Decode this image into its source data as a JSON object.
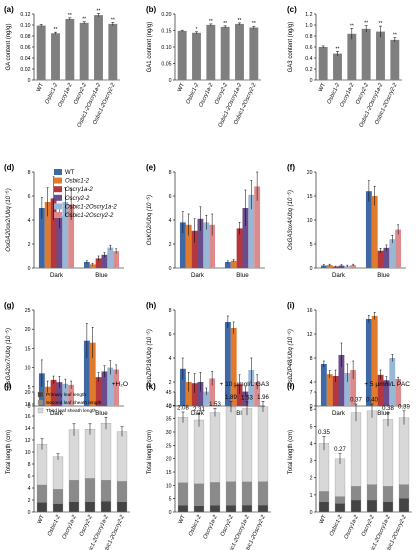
{
  "strains": [
    "WT",
    "Osbic1-2",
    "Oscry1a-2",
    "Oscry2-2",
    "Osbic1-2Oscry1a-2",
    "Osbic1-2Oscry2-2"
  ],
  "colors": {
    "gray_bar": "#7f7f7f",
    "WT": "#3f68a6",
    "Osbic1-2": "#e07b2e",
    "Oscry1a-2": "#b3373c",
    "Oscry2-2": "#6a4b8c",
    "Osbic1-2Oscry1a-2": "#98b6d6",
    "Osbic1-2Oscry2-2": "#dc8a8c",
    "primary": "#444444",
    "second": "#8a8a8a",
    "third": "#d8d8d8"
  },
  "chart_data": [
    {
      "id": "a",
      "panel_label": "(a)",
      "type": "bar",
      "ylabel": "GA content (ng/g)",
      "ylim": [
        0,
        0.12
      ],
      "yticks": [
        "0",
        "0.02",
        "0.04",
        "0.06",
        "0.08",
        "0.10",
        "0.12"
      ],
      "values": [
        0.099,
        0.085,
        0.111,
        0.104,
        0.118,
        0.102
      ],
      "errors": [
        0.002,
        0.002,
        0.002,
        0.002,
        0.003,
        0.003
      ],
      "sig": [
        "",
        "**",
        "**",
        "**",
        "**",
        "**"
      ]
    },
    {
      "id": "b",
      "panel_label": "(b)",
      "type": "bar",
      "ylabel": "GA1 content (ng/g)",
      "ylim": [
        0,
        0.2
      ],
      "yticks": [
        "0",
        "0.05",
        "0.10",
        "0.15",
        "0.20"
      ],
      "values": [
        0.149,
        0.143,
        0.167,
        0.161,
        0.17,
        0.159
      ],
      "errors": [
        0.002,
        0.003,
        0.003,
        0.003,
        0.003,
        0.004
      ],
      "sig": [
        "",
        "*",
        "**",
        "**",
        "**",
        "**"
      ]
    },
    {
      "id": "c",
      "panel_label": "(c)",
      "type": "bar",
      "ylabel": "GA3 content (ng/g)",
      "ylim": [
        0,
        1.2
      ],
      "yticks": [
        "0",
        "0.2",
        "0.4",
        "0.6",
        "0.8",
        "1.0",
        "1.2"
      ],
      "values": [
        0.6,
        0.48,
        0.84,
        0.93,
        0.88,
        0.73
      ],
      "errors": [
        0.02,
        0.04,
        0.1,
        0.06,
        0.1,
        0.04
      ],
      "sig": [
        "",
        "**",
        "**",
        "**",
        "**",
        "**"
      ]
    },
    {
      "id": "d",
      "panel_label": "(d)",
      "type": "bar",
      "ylabel": "OsGA20ox2/Ubq (10⁻⁵)",
      "ylim": [
        0,
        8
      ],
      "yticks": [
        "0",
        "2",
        "4",
        "6",
        "8"
      ],
      "categories": [
        "Dark",
        "Blue"
      ],
      "series": [
        {
          "name": "WT",
          "values": [
            5.0,
            0.5
          ],
          "errors": [
            0.9,
            0.1
          ]
        },
        {
          "name": "Osbic1-2",
          "values": [
            5.5,
            0.3
          ],
          "errors": [
            1.2,
            0.1
          ]
        },
        {
          "name": "Oscry1a-2",
          "values": [
            5.8,
            0.8
          ],
          "errors": [
            1.8,
            0.2
          ]
        },
        {
          "name": "Oscry2-2",
          "values": [
            4.3,
            1.1
          ],
          "errors": [
            1.0,
            0.2
          ]
        },
        {
          "name": "Osbic1-2Oscry1a-2",
          "values": [
            5.5,
            1.7
          ],
          "errors": [
            1.2,
            0.2
          ]
        },
        {
          "name": "Osbic1-2Oscry2-2",
          "values": [
            5.3,
            1.4
          ],
          "errors": [
            1.3,
            0.2
          ]
        }
      ]
    },
    {
      "id": "e",
      "panel_label": "(e)",
      "type": "bar",
      "ylabel": "OsKO2/Ubq (10⁻⁵)",
      "ylim": [
        0,
        8
      ],
      "yticks": [
        "0",
        "2",
        "4",
        "6",
        "8"
      ],
      "categories": [
        "Dark",
        "Blue"
      ],
      "series": [
        {
          "name": "WT",
          "values": [
            3.8,
            0.5
          ],
          "errors": [
            0.9,
            0.1
          ]
        },
        {
          "name": "Osbic1-2",
          "values": [
            3.6,
            0.6
          ],
          "errors": [
            0.9,
            0.1
          ]
        },
        {
          "name": "Oscry1a-2",
          "values": [
            3.1,
            3.3
          ],
          "errors": [
            1.0,
            0.5
          ]
        },
        {
          "name": "Oscry2-2",
          "values": [
            4.1,
            5.0
          ],
          "errors": [
            1.0,
            1.5
          ]
        },
        {
          "name": "Osbic1-2Oscry1a-2",
          "values": [
            3.8,
            6.1
          ],
          "errors": [
            0.6,
            1.2
          ]
        },
        {
          "name": "Osbic1-2Oscry2-2",
          "values": [
            3.6,
            6.8
          ],
          "errors": [
            0.9,
            1.2
          ]
        }
      ]
    },
    {
      "id": "f",
      "panel_label": "(f)",
      "type": "bar",
      "ylabel": "OsGA3ox4/Ubq (10⁻⁵)",
      "ylim": [
        0,
        20
      ],
      "yticks": [
        "0",
        "5",
        "10",
        "15",
        "20"
      ],
      "categories": [
        "Dark",
        "Blue"
      ],
      "series": [
        {
          "name": "WT",
          "values": [
            0.5,
            16.0
          ],
          "errors": [
            0.2,
            2.2
          ]
        },
        {
          "name": "Osbic1-2",
          "values": [
            0.6,
            15.0
          ],
          "errors": [
            0.2,
            2.0
          ]
        },
        {
          "name": "Oscry1a-2",
          "values": [
            0.3,
            3.6
          ],
          "errors": [
            0.1,
            0.5
          ]
        },
        {
          "name": "Oscry2-2",
          "values": [
            0.5,
            4.2
          ],
          "errors": [
            0.2,
            0.6
          ]
        },
        {
          "name": "Osbic1-2Oscry1a-2",
          "values": [
            0.4,
            6.0
          ],
          "errors": [
            0.2,
            0.8
          ]
        },
        {
          "name": "Osbic1-2Oscry2-2",
          "values": [
            0.6,
            8.0
          ],
          "errors": [
            0.2,
            1.0
          ]
        }
      ]
    },
    {
      "id": "g",
      "panel_label": "(g)",
      "type": "bar",
      "ylabel": "OsGA2ox7/Ubq (10⁻⁵)",
      "ylim": [
        0,
        25
      ],
      "yticks": [
        "0",
        "5",
        "10",
        "15",
        "20",
        "25"
      ],
      "categories": [
        "Dark",
        "Blue"
      ],
      "series": [
        {
          "name": "WT",
          "values": [
            8.5,
            17.0
          ],
          "errors": [
            3.5,
            4.5
          ]
        },
        {
          "name": "Osbic1-2",
          "values": [
            5.0,
            16.5
          ],
          "errors": [
            1.5,
            4.0
          ]
        },
        {
          "name": "Oscry1a-2",
          "values": [
            6.8,
            7.5
          ],
          "errors": [
            1.0,
            1.2
          ]
        },
        {
          "name": "Oscry2-2",
          "values": [
            6.2,
            9.0
          ],
          "errors": [
            1.5,
            1.5
          ]
        },
        {
          "name": "Osbic1-2Oscry1a-2",
          "values": [
            5.8,
            10.0
          ],
          "errors": [
            1.2,
            1.8
          ]
        },
        {
          "name": "Osbic1-2Oscry2-2",
          "values": [
            5.5,
            9.5
          ],
          "errors": [
            1.0,
            1.2
          ]
        }
      ]
    },
    {
      "id": "h",
      "panel_label": "(h)",
      "type": "bar",
      "ylabel": "OsbZIP18/Ubq (10⁻⁵)",
      "ylim": [
        0,
        8
      ],
      "yticks": [
        "0",
        "2",
        "4",
        "6",
        "8"
      ],
      "categories": [
        "Dark",
        "Blue"
      ],
      "series": [
        {
          "name": "WT",
          "values": [
            3.1,
            7.0
          ],
          "errors": [
            0.9,
            0.5
          ]
        },
        {
          "name": "Osbic1-2",
          "values": [
            2.0,
            6.5
          ],
          "errors": [
            0.8,
            0.5
          ]
        },
        {
          "name": "Oscry1a-2",
          "values": [
            1.9,
            1.8
          ],
          "errors": [
            0.8,
            0.8
          ]
        },
        {
          "name": "Oscry2-2",
          "values": [
            2.0,
            1.2
          ],
          "errors": [
            0.8,
            0.4
          ]
        },
        {
          "name": "Osbic1-2Oscry1a-2",
          "values": [
            1.2,
            3.0
          ],
          "errors": [
            0.3,
            1.0
          ]
        },
        {
          "name": "Osbic1-2Oscry2-2",
          "values": [
            2.3,
            2.0
          ],
          "errors": [
            0.6,
            0.6
          ]
        }
      ]
    },
    {
      "id": "i",
      "panel_label": "(i)",
      "type": "bar",
      "ylabel": "OsbZIP48/Ubq (10⁻⁶)",
      "ylim": [
        0,
        16
      ],
      "yticks": [
        "0",
        "4",
        "8",
        "12",
        "16"
      ],
      "categories": [
        "Dark",
        "Blue"
      ],
      "series": [
        {
          "name": "WT",
          "values": [
            7.0,
            14.5
          ],
          "errors": [
            0.5,
            0.6
          ]
        },
        {
          "name": "Osbic1-2",
          "values": [
            5.3,
            15.0
          ],
          "errors": [
            0.6,
            0.6
          ]
        },
        {
          "name": "Oscry1a-2",
          "values": [
            5.0,
            5.2
          ],
          "errors": [
            1.0,
            0.8
          ]
        },
        {
          "name": "Oscry2-2",
          "values": [
            8.5,
            4.3
          ],
          "errors": [
            2.0,
            0.6
          ]
        },
        {
          "name": "Osbic1-2Oscry1a-2",
          "values": [
            5.5,
            8.0
          ],
          "errors": [
            1.5,
            0.6
          ]
        },
        {
          "name": "Osbic1-2Oscry2-2",
          "values": [
            6.0,
            4.5
          ],
          "errors": [
            1.5,
            0.3
          ]
        }
      ]
    },
    {
      "id": "j",
      "panel_label": "(j)",
      "type": "stacked-bar",
      "treatment": "+H₂O",
      "ylabel": "Total length (cm)",
      "ylim": [
        0,
        20
      ],
      "yticks": [
        "0",
        "2",
        "4",
        "6",
        "8",
        "10",
        "12",
        "14",
        "16",
        "18",
        "20"
      ],
      "legend": [
        "Primary leaf length",
        "Second leaf sheath length",
        "Third leaf sheath length"
      ],
      "stack": [
        {
          "name": "Primary leaf length",
          "values": [
            1.6,
            1.4,
            1.7,
            1.7,
            1.8,
            1.7
          ]
        },
        {
          "name": "Second leaf sheath length",
          "values": [
            2.9,
            2.4,
            3.6,
            3.9,
            3.5,
            3.4
          ]
        },
        {
          "name": "Third leaf sheath length",
          "values": [
            6.8,
            5.4,
            8.4,
            8.2,
            9.5,
            8.3
          ]
        }
      ],
      "totals": [
        11.3,
        9.2,
        13.7,
        13.8,
        14.8,
        13.4
      ],
      "errors": [
        0.9,
        0.5,
        1.0,
        0.9,
        1.0,
        0.8
      ]
    },
    {
      "id": "k",
      "panel_label": "(k)",
      "type": "stacked-bar",
      "treatment": "+ 10 μmol/L GA3",
      "ylabel": "Total length (cm)",
      "ylim": [
        0,
        45
      ],
      "yticks": [
        "0",
        "5",
        "10",
        "15",
        "20",
        "25",
        "30",
        "35",
        "40",
        "45"
      ],
      "ratios": [
        "2.08",
        "2.31",
        "1.53",
        "1.89",
        "1.53",
        "1.96"
      ],
      "stack": [
        {
          "name": "Primary leaf length",
          "values": [
            2.5,
            2.3,
            2.5,
            2.5,
            2.6,
            2.6
          ]
        },
        {
          "name": "Second leaf sheath length",
          "values": [
            8.5,
            8.3,
            8.6,
            8.9,
            8.7,
            8.8
          ]
        },
        {
          "name": "Third leaf sheath length",
          "values": [
            24.5,
            23.9,
            26.2,
            28.0,
            27.5,
            28.1
          ]
        }
      ],
      "totals": [
        35.5,
        34.5,
        37.3,
        39.4,
        38.8,
        39.5
      ],
      "errors": [
        2.0,
        2.5,
        1.5,
        2.0,
        2.5,
        2.0
      ]
    },
    {
      "id": "l",
      "panel_label": "(l)",
      "type": "stacked-bar",
      "treatment": "+ 5 μmol/L PAC",
      "ylabel": "Total length (cm)",
      "ylim": [
        0,
        7
      ],
      "yticks": [
        "0",
        "1",
        "2",
        "3",
        "4",
        "5",
        "6",
        "7"
      ],
      "ratios": [
        "0.35",
        "0.27",
        "0.37",
        "0.40",
        "0.38",
        "0.39"
      ],
      "stack": [
        {
          "name": "Primary leaf length",
          "values": [
            0.6,
            0.5,
            0.7,
            0.7,
            0.6,
            0.8
          ]
        },
        {
          "name": "Second leaf sheath length",
          "values": [
            0.6,
            0.4,
            0.8,
            0.9,
            0.9,
            0.8
          ]
        },
        {
          "name": "Third leaf sheath length",
          "values": [
            2.8,
            2.2,
            4.3,
            4.3,
            3.9,
            3.9
          ]
        }
      ],
      "totals": [
        4.0,
        3.1,
        5.8,
        5.9,
        5.4,
        5.5
      ],
      "errors": [
        0.4,
        0.3,
        0.5,
        0.4,
        0.4,
        0.4
      ]
    }
  ]
}
